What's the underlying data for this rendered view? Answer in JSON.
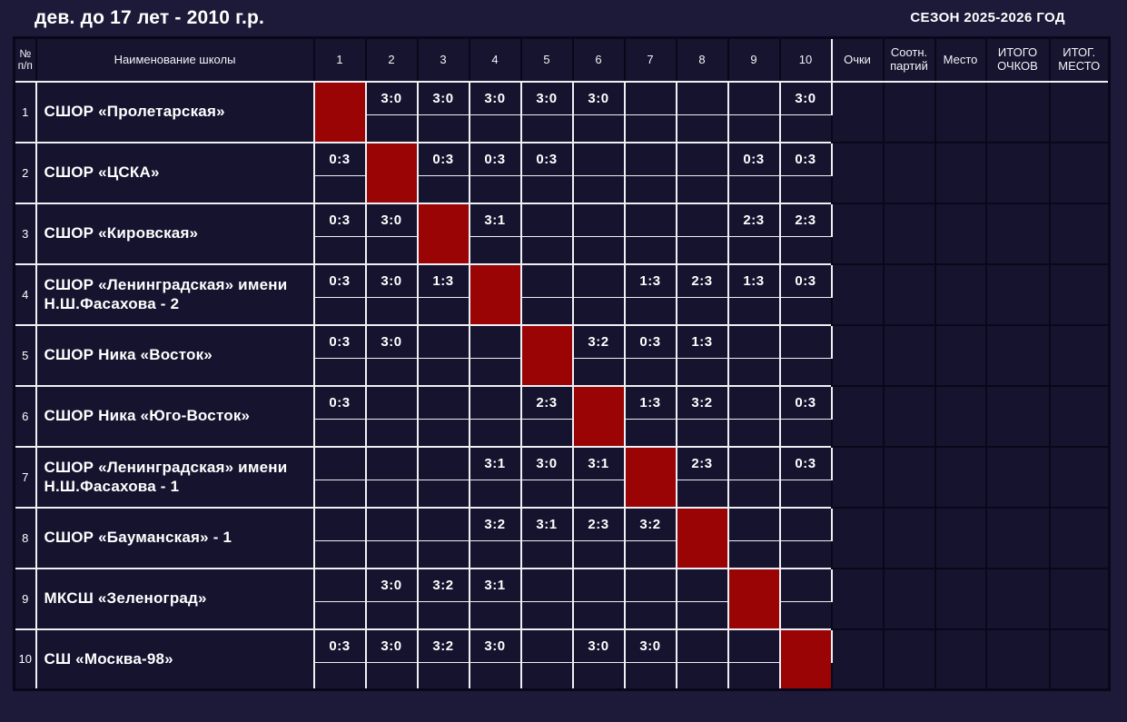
{
  "page": {
    "title": "дев. до 17 лет - 2010 г.р.",
    "season": "СЕЗОН 2025-2026 ГОД"
  },
  "colors": {
    "page_background": "#1c1a38",
    "cell_background": "#15132e",
    "diagonal_red": "#9a0404",
    "grid_white": "#efeff4",
    "grid_black": "#09081a",
    "text": "#ffffff"
  },
  "table": {
    "headers": {
      "num": "№\nп/п",
      "school": "Наименование школы",
      "opponents": [
        "1",
        "2",
        "3",
        "4",
        "5",
        "6",
        "7",
        "8",
        "9",
        "10"
      ],
      "points": "Очки",
      "set_ratio": "Соотн. партий",
      "place": "Место",
      "total_points": "ИТОГО ОЧКОВ",
      "final_place": "ИТОГ. МЕСТО"
    },
    "teams": [
      {
        "num": "1",
        "name": "СШОР «Пролетарская»",
        "results": [
          "",
          "3:0",
          "3:0",
          "3:0",
          "3:0",
          "3:0",
          "",
          "",
          "",
          "3:0"
        ],
        "points": "",
        "set_ratio": "",
        "place": "",
        "total_points": "",
        "final_place": ""
      },
      {
        "num": "2",
        "name": "СШОР «ЦСКА»",
        "results": [
          "0:3",
          "",
          "0:3",
          "0:3",
          "0:3",
          "",
          "",
          "",
          "0:3",
          "0:3"
        ],
        "points": "",
        "set_ratio": "",
        "place": "",
        "total_points": "",
        "final_place": ""
      },
      {
        "num": "3",
        "name": "СШОР «Кировская»",
        "results": [
          "0:3",
          "3:0",
          "",
          "3:1",
          "",
          "",
          "",
          "",
          "2:3",
          "2:3"
        ],
        "points": "",
        "set_ratio": "",
        "place": "",
        "total_points": "",
        "final_place": ""
      },
      {
        "num": "4",
        "name": "СШОР «Ленинградская» имени Н.Ш.Фасахова - 2",
        "results": [
          "0:3",
          "3:0",
          "1:3",
          "",
          "",
          "",
          "1:3",
          "2:3",
          "1:3",
          "0:3"
        ],
        "points": "",
        "set_ratio": "",
        "place": "",
        "total_points": "",
        "final_place": ""
      },
      {
        "num": "5",
        "name": "СШОР Ника «Восток»",
        "results": [
          "0:3",
          "3:0",
          "",
          "",
          "",
          "3:2",
          "0:3",
          "1:3",
          "",
          ""
        ],
        "points": "",
        "set_ratio": "",
        "place": "",
        "total_points": "",
        "final_place": ""
      },
      {
        "num": "6",
        "name": "СШОР Ника «Юго-Восток»",
        "results": [
          "0:3",
          "",
          "",
          "",
          "2:3",
          "",
          "1:3",
          "3:2",
          "",
          "0:3"
        ],
        "points": "",
        "set_ratio": "",
        "place": "",
        "total_points": "",
        "final_place": ""
      },
      {
        "num": "7",
        "name": "СШОР «Ленинградская» имени Н.Ш.Фасахова - 1",
        "results": [
          "",
          "",
          "",
          "3:1",
          "3:0",
          "3:1",
          "",
          "2:3",
          "",
          "0:3"
        ],
        "points": "",
        "set_ratio": "",
        "place": "",
        "total_points": "",
        "final_place": ""
      },
      {
        "num": "8",
        "name": "СШОР «Бауманская» - 1",
        "results": [
          "",
          "",
          "",
          "3:2",
          "3:1",
          "2:3",
          "3:2",
          "",
          "",
          ""
        ],
        "points": "",
        "set_ratio": "",
        "place": "",
        "total_points": "",
        "final_place": ""
      },
      {
        "num": "9",
        "name": "МКСШ «Зеленоград»",
        "results": [
          "",
          "3:0",
          "3:2",
          "3:1",
          "",
          "",
          "",
          "",
          "",
          ""
        ],
        "points": "",
        "set_ratio": "",
        "place": "",
        "total_points": "",
        "final_place": ""
      },
      {
        "num": "10",
        "name": "СШ «Москва-98»",
        "results": [
          "0:3",
          "3:0",
          "3:2",
          "3:0",
          "",
          "3:0",
          "3:0",
          "",
          "",
          ""
        ],
        "points": "",
        "set_ratio": "",
        "place": "",
        "total_points": "",
        "final_place": ""
      }
    ]
  }
}
